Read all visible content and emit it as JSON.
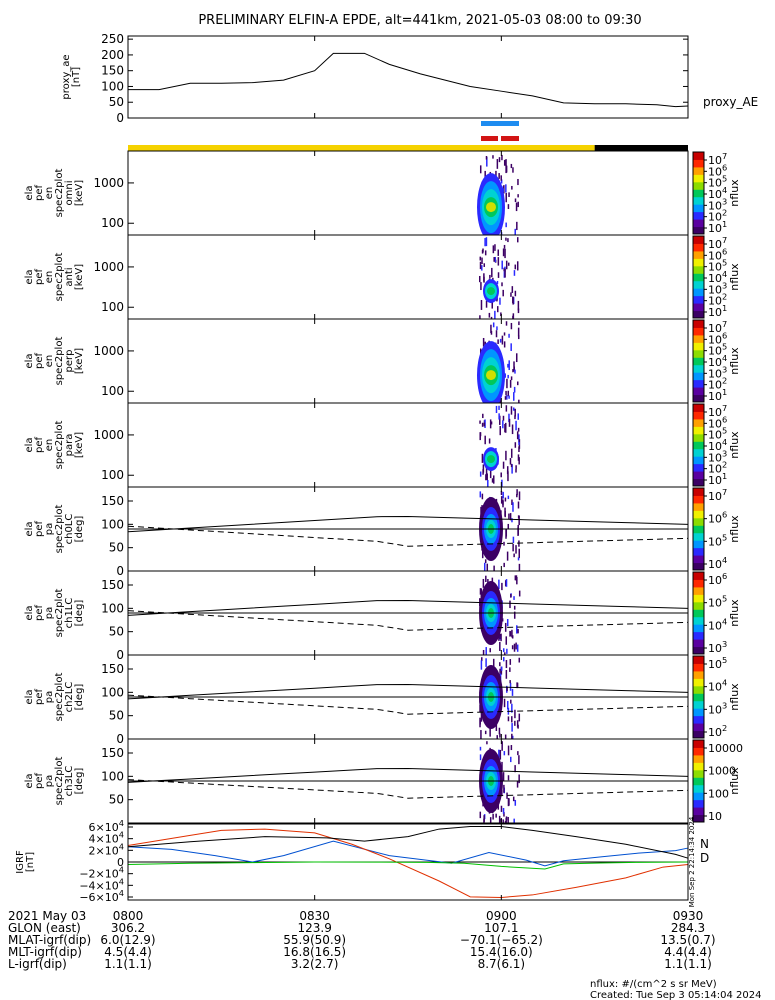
{
  "title": "PRELIMINARY ELFIN-A EPDE, alt=441km, 2021-05-03 08:00 to 09:30",
  "chart_data": {
    "type": "line",
    "colors": {
      "sci_zone": "#f5d200",
      "sci_zone_night": "#000000",
      "bar_blue": "#1e8cf0",
      "bar_red": "#d21414",
      "igrf_N": "#0050d0",
      "igrf_D": "#e03000",
      "igrf_green": "#00c000"
    },
    "proxy_ae": {
      "ylabel": [
        "proxy_ae",
        "[nT]"
      ],
      "yticks": [
        "250",
        "200",
        "150",
        "100",
        "50",
        "0"
      ],
      "ylim": [
        0,
        260
      ],
      "series_label": "proxy_AE",
      "t_minutes": [
        0,
        5,
        10,
        15,
        20,
        25,
        30,
        33,
        38,
        42,
        47,
        55,
        60,
        65,
        70,
        75,
        80,
        85,
        88,
        90
      ],
      "values": [
        90,
        90,
        110,
        110,
        112,
        120,
        150,
        205,
        205,
        170,
        140,
        100,
        85,
        70,
        48,
        45,
        45,
        42,
        36,
        38
      ]
    },
    "panels": [
      {
        "ylabel": [
          "ela",
          "pef",
          "en",
          "spec2plot",
          "omni",
          "[keV]"
        ],
        "yticks": [
          "1000",
          "100"
        ],
        "cbar_ticks": [
          "10^7",
          "10^6",
          "10^5",
          "10^4",
          "10^3",
          "10^2",
          "10^1"
        ],
        "cbar_label": "nflux"
      },
      {
        "ylabel": [
          "ela",
          "pef",
          "en",
          "spec2plot",
          "anti",
          "[keV]"
        ],
        "yticks": [
          "1000",
          "100"
        ],
        "cbar_ticks": [
          "10^7",
          "10^6",
          "10^5",
          "10^4",
          "10^3",
          "10^2",
          "10^1"
        ],
        "cbar_label": "nflux"
      },
      {
        "ylabel": [
          "ela",
          "pef",
          "en",
          "spec2plot",
          "perp",
          "[keV]"
        ],
        "yticks": [
          "1000",
          "100"
        ],
        "cbar_ticks": [
          "10^7",
          "10^6",
          "10^5",
          "10^4",
          "10^3",
          "10^2",
          "10^1"
        ],
        "cbar_label": "nflux"
      },
      {
        "ylabel": [
          "ela",
          "pef",
          "en",
          "spec2plot",
          "para",
          "[keV]"
        ],
        "yticks": [
          "1000",
          "100"
        ],
        "cbar_ticks": [
          "10^7",
          "10^6",
          "10^5",
          "10^4",
          "10^3",
          "10^2",
          "10^1"
        ],
        "cbar_label": "nflux"
      },
      {
        "ylabel": [
          "ela",
          "pef",
          "pa",
          "spec2plot",
          "ch0LC",
          "[deg]"
        ],
        "yticks": [
          "150",
          "100",
          "50",
          "0"
        ],
        "cbar_ticks": [
          "10^7",
          "10^6",
          "10^5",
          "10^4"
        ],
        "cbar_label": "nflux"
      },
      {
        "ylabel": [
          "ela",
          "pef",
          "pa",
          "spec2plot",
          "ch1LC",
          "[deg]"
        ],
        "yticks": [
          "150",
          "100",
          "50",
          "0"
        ],
        "cbar_ticks": [
          "10^6",
          "10^5",
          "10^4",
          "10^3"
        ],
        "cbar_label": "nflux"
      },
      {
        "ylabel": [
          "ela",
          "pef",
          "pa",
          "spec2plot",
          "ch2LC",
          "[deg]"
        ],
        "yticks": [
          "150",
          "100",
          "50",
          "0"
        ],
        "cbar_ticks": [
          "10^5",
          "10^4",
          "10^3",
          "10^2"
        ],
        "cbar_label": "nflux"
      },
      {
        "ylabel": [
          "ela",
          "pef",
          "pa",
          "spec2plot",
          "ch3LC",
          "[deg]"
        ],
        "yticks": [
          "150",
          "100",
          "50"
        ],
        "cbar_ticks": [
          "10000",
          "1000",
          "100",
          "10"
        ],
        "cbar_label": "nflux"
      }
    ],
    "igrf": {
      "ylabel": [
        "IGRF",
        "[nT]"
      ],
      "yticks": [
        "6×10^4",
        "4×10^4",
        "2×10^4",
        "0",
        "−2×10^4",
        "−4×10^4",
        "−6×10^4"
      ],
      "ylim": [
        -60000,
        60000
      ],
      "legend": [
        "N",
        "D"
      ],
      "series": [
        {
          "name": "N",
          "t_minutes": [
            0,
            7,
            14,
            20,
            25,
            33,
            42,
            52,
            58,
            64,
            67,
            70,
            76,
            82,
            88,
            90
          ],
          "values": [
            24000,
            20000,
            10000,
            0,
            10000,
            33000,
            10000,
            -2000,
            15000,
            3000,
            -6000,
            2000,
            8000,
            14000,
            18000,
            22000
          ]
        },
        {
          "t_minutes": [
            0,
            10,
            15,
            22,
            30,
            36,
            42,
            50,
            55,
            60,
            65,
            72,
            80,
            86,
            90
          ],
          "values": [
            26000,
            42000,
            50000,
            52000,
            46000,
            28000,
            5000,
            -30000,
            -55000,
            -56000,
            -52000,
            -40000,
            -25000,
            -8000,
            -4000
          ]
        },
        {
          "name": "D",
          "t_minutes": [
            0,
            10,
            20,
            30,
            40,
            48,
            54,
            60,
            67,
            70,
            76,
            82,
            90
          ],
          "values": [
            -4000,
            -2000,
            -1000,
            0,
            -200,
            -500,
            -2000,
            -7000,
            -11000,
            -3000,
            -1500,
            -500,
            0
          ]
        },
        {
          "t_minutes": [
            0,
            10,
            22,
            32,
            38,
            45,
            50,
            55,
            60,
            65,
            72,
            80,
            88,
            90
          ],
          "values": [
            24000,
            32000,
            40000,
            38000,
            33000,
            40000,
            52000,
            56000,
            56000,
            50000,
            40000,
            28000,
            12000,
            6000
          ]
        }
      ]
    },
    "xaxis": {
      "ticks": [
        "0800",
        "0830",
        "0900",
        "0930"
      ],
      "tick_minutes": [
        0,
        30,
        60,
        90
      ]
    },
    "sci_zone_minutes": [
      0,
      75
    ],
    "night_minutes": [
      75,
      90
    ]
  },
  "footer": {
    "rows": [
      {
        "label": "2021 May 03",
        "values": [
          "0800",
          "0830",
          "0900",
          "0930"
        ]
      },
      {
        "label": "GLON (east)",
        "values": [
          "306.2",
          "123.9",
          "107.1",
          "284.3"
        ]
      },
      {
        "label": "MLAT-igrf(dip)",
        "values": [
          "6.0(12.9)",
          "55.9(50.9)",
          "−70.1(−65.2)",
          "13.5(0.7)"
        ]
      },
      {
        "label": "MLT-igrf(dip)",
        "values": [
          "4.5(4.4)",
          "16.8(16.5)",
          "15.4(16.0)",
          "4.4(4.4)"
        ]
      },
      {
        "label": "L-igrf(dip)",
        "values": [
          "1.1(1.1)",
          "3.2(2.7)",
          "8.7(6.1)",
          "1.1(1.1)"
        ]
      }
    ],
    "units_note": "nflux: #/(cm^2 s sr MeV)",
    "created": "Created: Tue Sep  3 05:14:04 2024",
    "side_stamp": "Mon Sep  2 22:14:34 2024"
  }
}
